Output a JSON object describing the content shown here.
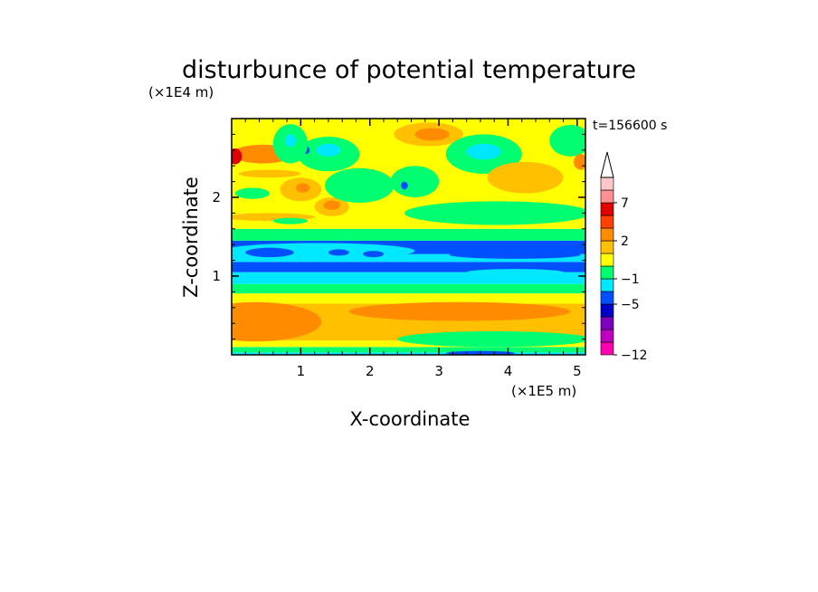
{
  "chart_data": {
    "type": "heatmap",
    "title": "disturbunce of potential temperature",
    "xlabel": "X-coordinate",
    "ylabel": "Z-coordinate",
    "x_unit": "(×1E5 m)",
    "y_unit": "(×1E4 m)",
    "time_label": "t=156600 s",
    "xlim": [
      0,
      5.12
    ],
    "ylim": [
      0,
      3.0
    ],
    "x_ticks": [
      1,
      2,
      3,
      4,
      5
    ],
    "y_ticks": [
      1,
      2
    ],
    "x_tick_labels": [
      "1",
      "2",
      "3",
      "4",
      "5"
    ],
    "y_tick_labels": [
      "1",
      "2"
    ],
    "colorbar": {
      "levels": [
        -12,
        -10,
        -8,
        -6,
        -5,
        -3,
        -1,
        0,
        1,
        2,
        4,
        5,
        7,
        9,
        11
      ],
      "colors": [
        "#ff00b0",
        "#c000c0",
        "#7f00bf",
        "#0000c8",
        "#0050ff",
        "#00e8ff",
        "#00ff70",
        "#ffff00",
        "#ffc000",
        "#ff8c00",
        "#ff4000",
        "#e00000",
        "#ff9090",
        "#ffc8c8"
      ],
      "extend_color": "#ffffff",
      "labels": [
        "7",
        "2",
        "−1",
        "−5",
        "−12"
      ]
    },
    "bands": [
      {
        "z_from": 0.0,
        "z_to": 0.03,
        "value": -3
      },
      {
        "z_from": 0.03,
        "z_to": 0.1,
        "value": -1
      },
      {
        "z_from": 0.1,
        "z_to": 0.18,
        "value": 0
      },
      {
        "z_from": 0.18,
        "z_to": 0.65,
        "value": 1
      },
      {
        "z_from": 0.65,
        "z_to": 0.78,
        "value": 0
      },
      {
        "z_from": 0.78,
        "z_to": 0.9,
        "value": -1
      },
      {
        "z_from": 0.9,
        "z_to": 1.05,
        "value": -3
      },
      {
        "z_from": 1.05,
        "z_to": 1.18,
        "value": -5
      },
      {
        "z_from": 1.18,
        "z_to": 1.28,
        "value": -3
      },
      {
        "z_from": 1.28,
        "z_to": 1.45,
        "value": -5
      },
      {
        "z_from": 1.45,
        "z_to": 1.6,
        "value": -1
      },
      {
        "z_from": 1.6,
        "z_to": 3.0,
        "value": 0
      }
    ],
    "blobs": [
      {
        "x": 0.35,
        "z": 0.42,
        "rx": 0.95,
        "rz": 0.25,
        "value": 2
      },
      {
        "x": 3.3,
        "z": 0.55,
        "rx": 1.6,
        "rz": 0.12,
        "value": 2
      },
      {
        "x": 1.25,
        "z": 1.32,
        "rx": 1.4,
        "rz": 0.1,
        "value": -3
      },
      {
        "x": 0.55,
        "z": 1.3,
        "rx": 0.35,
        "rz": 0.06,
        "value": -5
      },
      {
        "x": 1.55,
        "z": 1.3,
        "rx": 0.15,
        "rz": 0.04,
        "value": -5
      },
      {
        "x": 2.05,
        "z": 1.28,
        "rx": 0.15,
        "rz": 0.04,
        "value": -5
      },
      {
        "x": 4.1,
        "z": 1.27,
        "rx": 0.95,
        "rz": 0.05,
        "value": -5
      },
      {
        "x": 4.1,
        "z": 1.05,
        "rx": 0.7,
        "rz": 0.04,
        "value": -3
      },
      {
        "x": 0.45,
        "z": 2.55,
        "rx": 0.45,
        "rz": 0.12,
        "value": 2
      },
      {
        "x": 0.05,
        "z": 2.52,
        "rx": 0.1,
        "rz": 0.1,
        "value": 5
      },
      {
        "x": 0.3,
        "z": 2.05,
        "rx": 0.25,
        "rz": 0.07,
        "value": -1
      },
      {
        "x": 0.55,
        "z": 1.75,
        "rx": 0.65,
        "rz": 0.05,
        "value": 1
      },
      {
        "x": 0.55,
        "z": 2.3,
        "rx": 0.45,
        "rz": 0.05,
        "value": 1
      },
      {
        "x": 1.4,
        "z": 2.55,
        "rx": 0.45,
        "rz": 0.22,
        "value": -1
      },
      {
        "x": 1.4,
        "z": 2.6,
        "rx": 0.18,
        "rz": 0.08,
        "value": -3
      },
      {
        "x": 1.08,
        "z": 2.6,
        "rx": 0.05,
        "rz": 0.05,
        "value": -5
      },
      {
        "x": 0.85,
        "z": 2.68,
        "rx": 0.25,
        "rz": 0.25,
        "value": -1
      },
      {
        "x": 0.85,
        "z": 2.72,
        "rx": 0.08,
        "rz": 0.08,
        "value": -3
      },
      {
        "x": 1.0,
        "z": 2.1,
        "rx": 0.3,
        "rz": 0.15,
        "value": 1
      },
      {
        "x": 1.03,
        "z": 2.12,
        "rx": 0.1,
        "rz": 0.06,
        "value": 2
      },
      {
        "x": 1.45,
        "z": 1.88,
        "rx": 0.25,
        "rz": 0.12,
        "value": 1
      },
      {
        "x": 1.45,
        "z": 1.9,
        "rx": 0.12,
        "rz": 0.06,
        "value": 2
      },
      {
        "x": 0.85,
        "z": 1.7,
        "rx": 0.25,
        "rz": 0.04,
        "value": -1
      },
      {
        "x": 1.85,
        "z": 2.15,
        "rx": 0.5,
        "rz": 0.22,
        "value": -1
      },
      {
        "x": 2.65,
        "z": 2.2,
        "rx": 0.35,
        "rz": 0.2,
        "value": -1
      },
      {
        "x": 2.5,
        "z": 2.15,
        "rx": 0.05,
        "rz": 0.05,
        "value": -5
      },
      {
        "x": 2.85,
        "z": 2.8,
        "rx": 0.5,
        "rz": 0.15,
        "value": 1
      },
      {
        "x": 2.9,
        "z": 2.8,
        "rx": 0.25,
        "rz": 0.08,
        "value": 2
      },
      {
        "x": 3.65,
        "z": 2.55,
        "rx": 0.55,
        "rz": 0.25,
        "value": -1
      },
      {
        "x": 3.65,
        "z": 2.58,
        "rx": 0.25,
        "rz": 0.1,
        "value": -3
      },
      {
        "x": 4.25,
        "z": 2.25,
        "rx": 0.55,
        "rz": 0.2,
        "value": 1
      },
      {
        "x": 3.85,
        "z": 1.8,
        "rx": 1.35,
        "rz": 0.15,
        "value": -1
      },
      {
        "x": 4.9,
        "z": 2.72,
        "rx": 0.3,
        "rz": 0.2,
        "value": -1
      },
      {
        "x": 5.05,
        "z": 2.45,
        "rx": 0.1,
        "rz": 0.1,
        "value": 2
      },
      {
        "x": 3.8,
        "z": 0.2,
        "rx": 1.4,
        "rz": 0.1,
        "value": -1
      },
      {
        "x": 3.6,
        "z": 0.02,
        "rx": 0.5,
        "rz": 0.03,
        "value": -5
      }
    ]
  }
}
